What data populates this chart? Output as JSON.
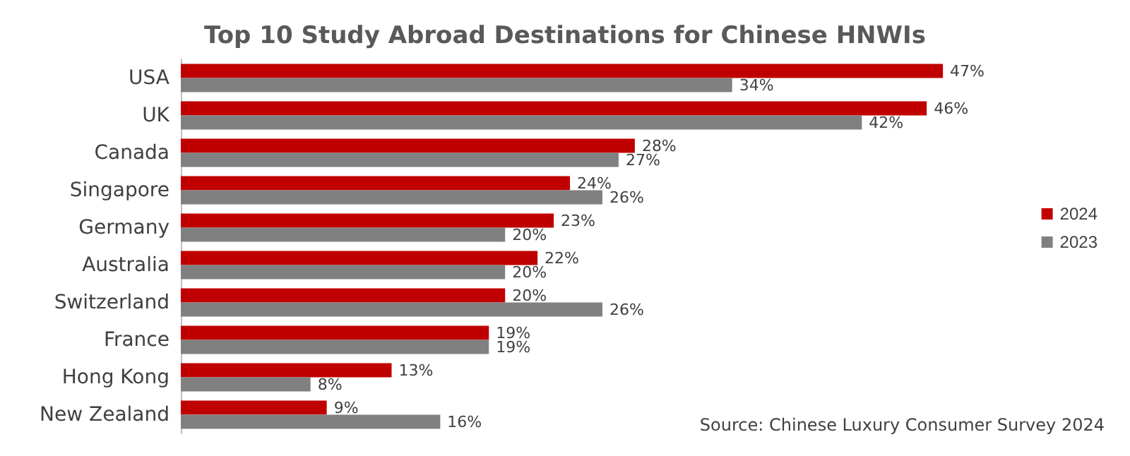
{
  "chart_data": {
    "type": "bar",
    "orientation": "horizontal",
    "title": "Top 10 Study Abroad Destinations for Chinese HNWIs",
    "categories": [
      "USA",
      "UK",
      "Canada",
      "Singapore",
      "Germany",
      "Australia",
      "Switzerland",
      "France",
      "Hong Kong",
      "New Zealand"
    ],
    "series": [
      {
        "name": "2024",
        "color": "#c00000",
        "values": [
          47,
          46,
          28,
          24,
          23,
          22,
          20,
          19,
          13,
          9
        ],
        "value_labels": [
          "47%",
          "46%",
          "28%",
          "24%",
          "23%",
          "22%",
          "20%",
          "19%",
          "13%",
          "9%"
        ]
      },
      {
        "name": "2023",
        "color": "#808080",
        "values": [
          34,
          42,
          27,
          26,
          20,
          20,
          26,
          19,
          8,
          16
        ],
        "value_labels": [
          "34%",
          "42%",
          "27%",
          "26%",
          "20%",
          "20%",
          "26%",
          "19%",
          "8%",
          "16%"
        ]
      }
    ],
    "legend": "right",
    "annotations": [
      "Source: Chinese Luxury Consumer Survey 2024"
    ]
  }
}
